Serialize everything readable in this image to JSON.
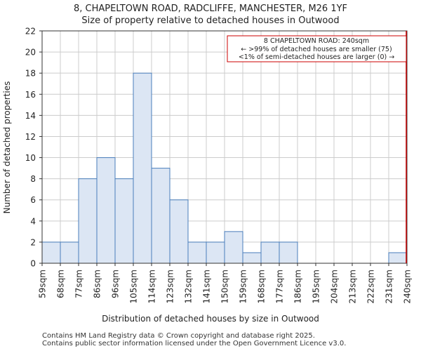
{
  "chart_data": {
    "type": "bar",
    "title": "8, CHAPELTOWN ROAD, RADCLIFFE, MANCHESTER, M26 1YF",
    "subtitle": "Size of property relative to detached houses in Outwood",
    "xlabel": "Distribution of detached houses by size in Outwood",
    "ylabel": "Number of detached properties",
    "bin_edges": [
      "59sqm",
      "68sqm",
      "77sqm",
      "86sqm",
      "96sqm",
      "105sqm",
      "114sqm",
      "123sqm",
      "132sqm",
      "141sqm",
      "150sqm",
      "159sqm",
      "168sqm",
      "177sqm",
      "186sqm",
      "195sqm",
      "204sqm",
      "213sqm",
      "222sqm",
      "231sqm",
      "240sqm"
    ],
    "values": [
      2,
      2,
      8,
      10,
      8,
      18,
      9,
      6,
      2,
      2,
      3,
      1,
      2,
      2,
      0,
      0,
      0,
      0,
      0,
      1
    ],
    "ylim": [
      0,
      22
    ],
    "yticks": [
      0,
      2,
      4,
      6,
      8,
      10,
      12,
      14,
      16,
      18,
      20,
      22
    ],
    "grid": true,
    "bar_color": "#dce6f4",
    "bar_edge_color": "#4a7ebb",
    "marker_color": "#cc0000",
    "marker_bin_index": 20,
    "annotation": {
      "line1": "8 CHAPELTOWN ROAD: 240sqm",
      "line2": "← >99% of detached houses are smaller (75)",
      "line3": "<1% of semi-detached houses are larger (0) →"
    }
  },
  "footer": {
    "line1": "Contains HM Land Registry data © Crown copyright and database right 2025.",
    "line2": "Contains public sector information licensed under the Open Government Licence v3.0."
  }
}
